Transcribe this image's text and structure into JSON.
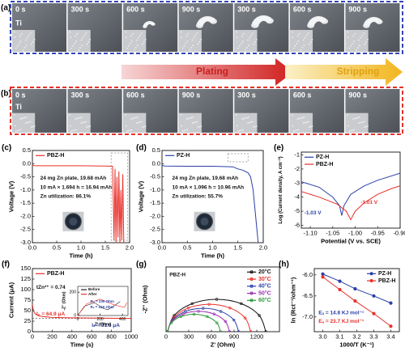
{
  "photo_panels": [
    {
      "label": "(a)",
      "electrode": "Ti",
      "frames": [
        "0 s",
        "300 s",
        "600 s",
        "900 s",
        "300 s",
        "600 s",
        "900 s"
      ]
    },
    {
      "label": "(b)",
      "electrode": "Ti",
      "frames": [
        "0 s",
        "300 s",
        "600 s",
        "900 s",
        "300 s",
        "600 s",
        "900 s"
      ]
    }
  ],
  "process": {
    "plating": "Plating",
    "stripping": "Stripping"
  },
  "chart_data": [
    {
      "type": "line",
      "panel": "(c)",
      "xlabel": "Time (h)",
      "ylabel": "Voltage (V)",
      "xlim": [
        0,
        2.0
      ],
      "ylim": [
        -3.0,
        0.5
      ],
      "xticks": [
        {
          "value": 0,
          "label": "0.0"
        },
        0.5,
        {
          "value": 1,
          "label": "1.0"
        },
        1.5,
        {
          "value": 2,
          "label": "2.0"
        }
      ],
      "yticks": [
        0.5,
        {
          "value": 0,
          "label": "0.0"
        },
        -0.5,
        {
          "value": -1,
          "label": "-1.0"
        },
        -1.5,
        {
          "value": -2,
          "label": "-2.0"
        },
        -2.5,
        {
          "value": -3,
          "label": "-3.0"
        }
      ],
      "legend": "upper left",
      "x": [
        0,
        0.05,
        0.5,
        1.0,
        1.5,
        1.65,
        1.68,
        1.7,
        1.72,
        1.74,
        1.76,
        1.78,
        1.8,
        1.82,
        1.84,
        1.86,
        1.88
      ],
      "series": [
        {
          "name": "PBZ-H",
          "color": "#e8302a",
          "values": [
            -0.05,
            -0.08,
            -0.08,
            -0.08,
            -0.09,
            -0.1,
            -2.9,
            -0.2,
            -3.0,
            -0.5,
            -2.8,
            -0.3,
            -3.0,
            -1.0,
            -2.9,
            -0.4,
            -3.0
          ]
        }
      ],
      "annotations": [
        "24 mg Zn plate, 19.68 mAh",
        "10 mA × 1.694 h = 16.94 mAh",
        "Zn utilization: 86.1%"
      ]
    },
    {
      "type": "line",
      "panel": "(d)",
      "xlabel": "Time (h)",
      "ylabel": "Voltage (V)",
      "xlim": [
        0,
        2.0
      ],
      "ylim": [
        -3.0,
        0.5
      ],
      "xticks": [
        {
          "value": 0,
          "label": "0.0"
        },
        0.5,
        {
          "value": 1,
          "label": "1.0"
        },
        1.5,
        {
          "value": 2,
          "label": "2.0"
        }
      ],
      "yticks": [
        0.5,
        {
          "value": 0,
          "label": "0.0"
        },
        -0.5,
        {
          "value": -1,
          "label": "-1.0"
        },
        -1.5,
        {
          "value": -2,
          "label": "-2.0"
        },
        -2.5,
        {
          "value": -3,
          "label": "-3.0"
        }
      ],
      "legend": "upper left",
      "x": [
        0,
        0.05,
        0.5,
        1.0,
        1.4,
        1.5,
        1.6,
        1.7,
        1.75,
        1.8,
        1.85,
        1.9
      ],
      "series": [
        {
          "name": "PZ-H",
          "color": "#2a3fa8",
          "values": [
            -0.06,
            -0.09,
            -0.1,
            -0.1,
            -0.12,
            -0.2,
            -0.25,
            -0.35,
            -0.5,
            -1.0,
            -2.0,
            -3.0
          ]
        }
      ],
      "annotations": [
        "24 mg Zn plate, 19.68 mAh",
        "10 mA × 1.096 h = 10.96 mAh",
        "Zn utilization: 55.7%"
      ]
    },
    {
      "type": "line",
      "panel": "(e)",
      "xlabel": "Potential (V vs. SCE)",
      "ylabel": "Log (Current density, A cm⁻²)",
      "xlim": [
        -1.12,
        -0.9
      ],
      "ylim": [
        -6.2,
        -0.8
      ],
      "xticks": [
        {
          "value": -1.1,
          "label": "-1.10"
        },
        -1.05,
        {
          "value": -1,
          "label": "-1.00"
        },
        -0.95,
        {
          "value": -0.9,
          "label": "-0.90"
        }
      ],
      "yticks": [
        -1,
        -2,
        -3,
        -4,
        -5,
        -6
      ],
      "legend": "upper left",
      "series": [
        {
          "name": "PZ-H",
          "color": "#2a3fa8",
          "x": [
            -1.12,
            -1.08,
            -1.05,
            -1.035,
            -1.03,
            -1.025,
            -1.01,
            -0.98,
            -0.95,
            -0.9
          ],
          "values": [
            -2.9,
            -3.3,
            -4.0,
            -4.6,
            -5.3,
            -4.6,
            -3.8,
            -3.2,
            -2.8,
            -2.3
          ]
        },
        {
          "name": "PBZ-H",
          "color": "#e8302a",
          "x": [
            -1.12,
            -1.08,
            -1.04,
            -1.02,
            -1.01,
            -1.0,
            -0.98,
            -0.95,
            -0.92,
            -0.9
          ],
          "values": [
            -3.6,
            -4.0,
            -4.5,
            -5.0,
            -5.6,
            -5.0,
            -4.4,
            -3.8,
            -3.4,
            -3.2
          ]
        }
      ],
      "annotations": [
        "-1.03 V",
        "-1.01 V"
      ]
    },
    {
      "type": "line",
      "panel": "(f)",
      "xlabel": "Time (s)",
      "ylabel": "Current (μA)",
      "xlim": [
        0,
        1000
      ],
      "ylim": [
        0,
        150
      ],
      "xticks": [
        0,
        200,
        400,
        600,
        800,
        1000
      ],
      "yticks": [
        0,
        25,
        50,
        75,
        100,
        125,
        150
      ],
      "legend": "upper left",
      "x": [
        0,
        10,
        30,
        60,
        100,
        200,
        400,
        600,
        800,
        1000
      ],
      "series": [
        {
          "name": "PBZ-H",
          "color": "#e8302a",
          "values": [
            64.9,
            50,
            42,
            38,
            36,
            34,
            33,
            32.5,
            32,
            31.6
          ]
        }
      ],
      "annotations": [
        "tZn²⁺ = 0.74",
        "I₀ = 64.9 μA",
        "Iₛ = 31.6 μA"
      ]
    },
    {
      "type": "line",
      "xlabel": "Z' (Ohm)",
      "ylabel": "-Z'' (Ohm)",
      "xlim": [
        0,
        450
      ],
      "ylim": [
        0,
        250
      ],
      "xticks": [
        0,
        200,
        400
      ],
      "yticks": [
        0,
        200
      ],
      "legend": "upper left",
      "series": [
        {
          "name": "Before",
          "color": "#222222",
          "x": [
            0,
            60,
            150,
            230,
            270,
            320,
            380
          ],
          "values": [
            0,
            80,
            110,
            60,
            50,
            80,
            120
          ]
        },
        {
          "name": "After",
          "color": "#e8302a",
          "x": [
            0,
            80,
            200,
            330,
            419,
            440
          ],
          "values": [
            0,
            100,
            140,
            90,
            70,
            110
          ]
        }
      ],
      "annotations": [
        "R₀ = 230 Ohm",
        "Rₛ = 419 Ohm"
      ]
    },
    {
      "type": "line",
      "panel": "(g)",
      "xlabel": "Z' (Ohm)",
      "ylabel": "-Z'' (Ohm)",
      "xlim": [
        0,
        1500
      ],
      "ylim": [
        0,
        1300
      ],
      "xticks": [
        0,
        300,
        600,
        900,
        1200
      ],
      "legend": "upper right",
      "series": [
        {
          "name": "20°C",
          "color": "#111111",
          "x": [
            20,
            107,
            345,
            670,
            995,
            1233,
            1320
          ],
          "values": [
            0,
            325,
            563,
            650,
            563,
            325,
            0
          ]
        },
        {
          "name": "30°C",
          "color": "#e8302a",
          "x": [
            20,
            94,
            295,
            570,
            845,
            1046,
            1120
          ],
          "values": [
            0,
            275,
            476,
            550,
            476,
            275,
            0
          ]
        },
        {
          "name": "40°C",
          "color": "#2a3fa8",
          "x": [
            20,
            83,
            255,
            490,
            725,
            897,
            960
          ],
          "values": [
            0,
            235,
            407,
            470,
            407,
            235,
            0
          ]
        },
        {
          "name": "50°C",
          "color": "#9b30b0",
          "x": [
            20,
            75,
            225,
            430,
            635,
            785,
            840
          ],
          "values": [
            0,
            205,
            355,
            410,
            355,
            205,
            0
          ]
        },
        {
          "name": "60°C",
          "color": "#2a9a3a",
          "x": [
            20,
            67,
            195,
            370,
            545,
            673,
            720
          ],
          "values": [
            0,
            175,
            303,
            350,
            303,
            175,
            0
          ]
        }
      ],
      "annotations": [
        "PBZ-H"
      ]
    },
    {
      "type": "scatter",
      "panel": "(h)",
      "xlabel": "1000/T (K⁻¹)",
      "ylabel": "ln (Rct⁻¹/ohm⁻¹)",
      "xlim": [
        2.95,
        3.45
      ],
      "ylim": [
        -7.35,
        -5.85
      ],
      "xticks": [
        {
          "value": 3,
          "label": "3.0"
        },
        3.1,
        3.2,
        3.3,
        3.4
      ],
      "yticks": [
        {
          "value": -6,
          "label": "-6.0"
        },
        -6.5,
        {
          "value": -7,
          "label": "-7.0"
        }
      ],
      "legend": "upper right",
      "x": [
        3.0,
        3.1,
        3.19,
        3.3,
        3.4
      ],
      "series": [
        {
          "name": "PZ-H",
          "color": "#2a3fa8",
          "values": [
            -5.98,
            -6.15,
            -6.33,
            -6.5,
            -6.67
          ]
        },
        {
          "name": "PBZ-H",
          "color": "#e8302a",
          "values": [
            -6.05,
            -6.35,
            -6.62,
            -6.92,
            -7.22
          ]
        }
      ],
      "annotations": [
        "Eₐ = 14.8 KJ mol⁻¹",
        "Eₐ = 23.7 KJ mol⁻¹"
      ]
    }
  ]
}
